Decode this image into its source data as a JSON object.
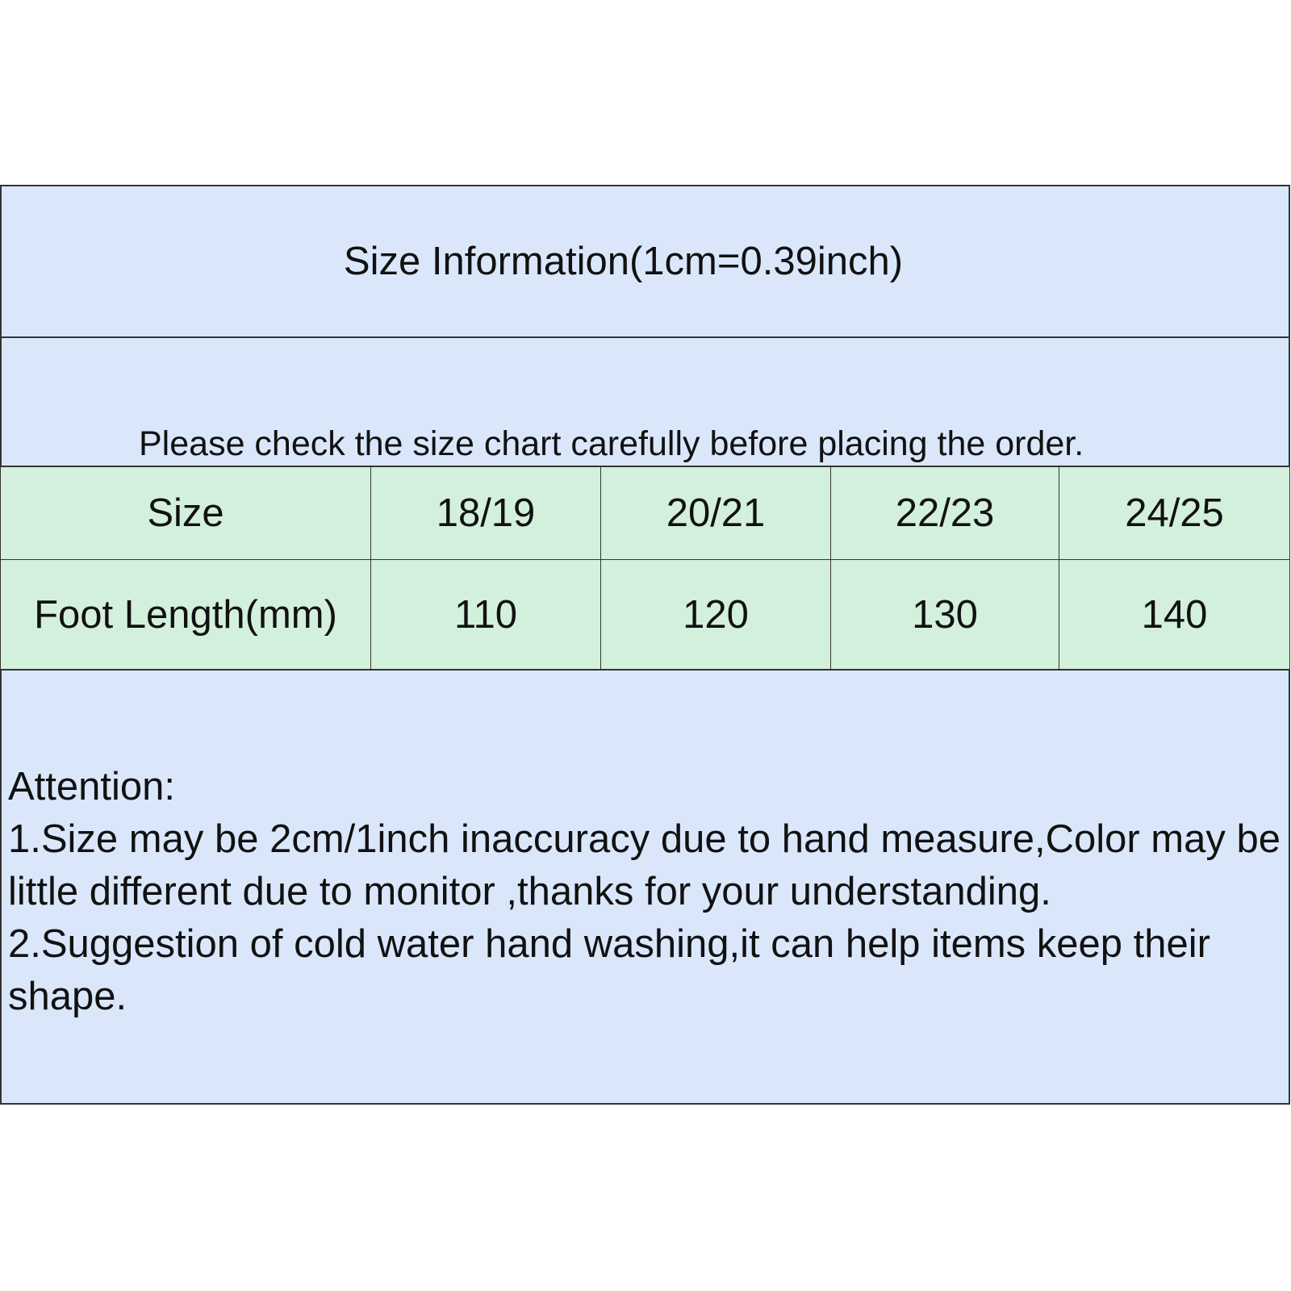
{
  "title": "Size Information(1cm=0.39inch)",
  "subtitle": "Please check the size chart carefully before placing the order.",
  "table": {
    "headers": [
      "Size",
      "18/19",
      "20/21",
      "22/23",
      "24/25"
    ],
    "rows": [
      [
        "Foot Length(mm)",
        "110",
        "120",
        "130",
        "140"
      ]
    ]
  },
  "notes": {
    "heading": "Attention:",
    "lines": [
      "1.Size may be 2cm/1inch inaccuracy due to hand measure,Color may be little different due to monitor ,thanks for your understanding.",
      "2.Suggestion of cold water hand washing,it can help items keep their shape."
    ]
  },
  "colors": {
    "header_bg": "#dae7fb",
    "table_bg": "#d3f0dc"
  }
}
